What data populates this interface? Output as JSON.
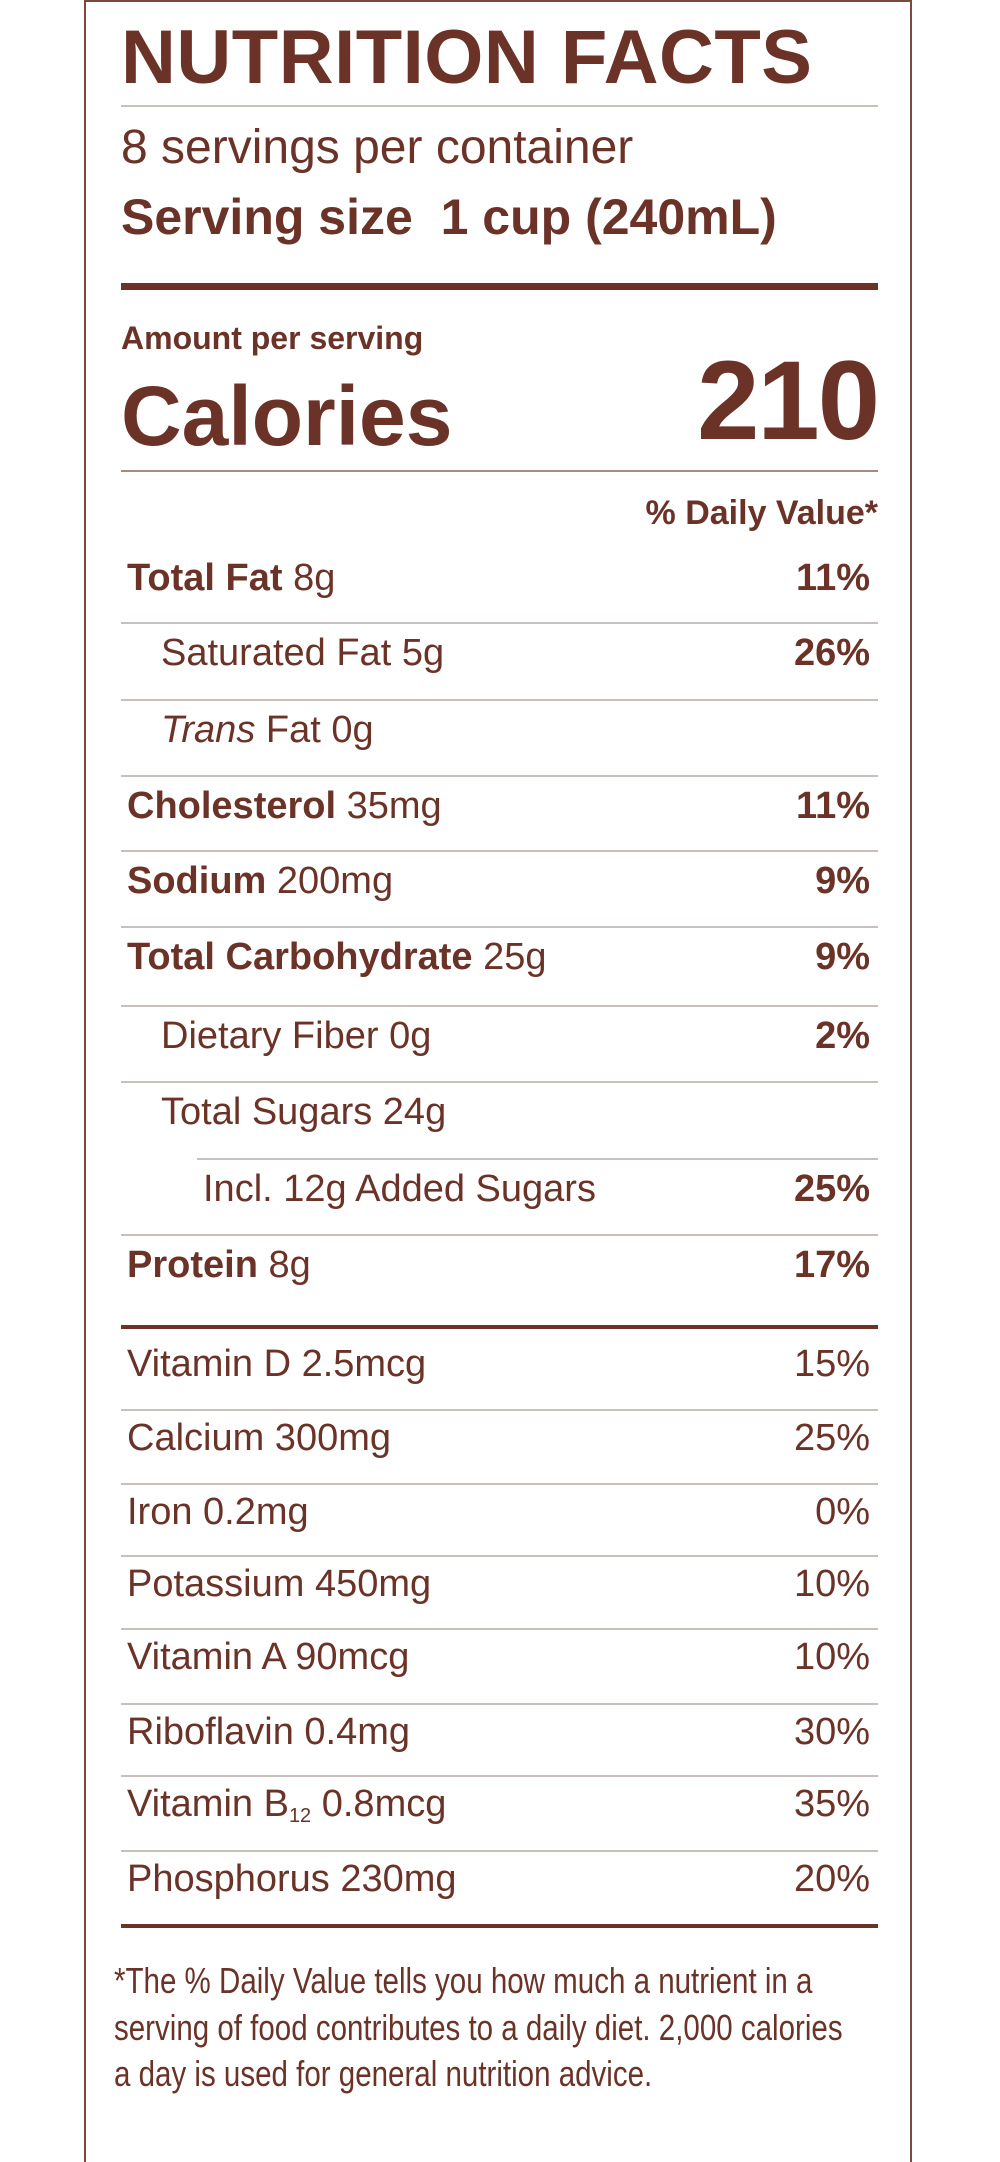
{
  "title": "NUTRITION FACTS",
  "servings_per_container": "8 servings per container",
  "serving_size_label": "Serving size",
  "serving_size_value": "1 cup (240mL)",
  "amount_per_serving": "Amount per serving",
  "calories_label": "Calories",
  "calories_value": "210",
  "daily_value_header": "% Daily Value*",
  "nutrients": [
    {
      "name": "Total Fat",
      "amount": "8g",
      "dv": "11%"
    },
    {
      "name": "Saturated Fat",
      "amount": "5g",
      "dv": "26%"
    },
    {
      "name_italic": "Trans",
      "name": "Fat",
      "amount": "0g",
      "dv": ""
    },
    {
      "name": "Cholesterol",
      "amount": "35mg",
      "dv": "11%"
    },
    {
      "name": "Sodium",
      "amount": "200mg",
      "dv": "9%"
    },
    {
      "name": "Total Carbohydrate",
      "amount": "25g",
      "dv": "9%"
    },
    {
      "name": "Dietary Fiber",
      "amount": "0g",
      "dv": "2%"
    },
    {
      "name": "Total Sugars",
      "amount": "24g",
      "dv": ""
    },
    {
      "name": "Incl. 12g Added Sugars",
      "amount": "",
      "dv": "25%"
    },
    {
      "name": "Protein",
      "amount": "8g",
      "dv": "17%"
    }
  ],
  "vitamins": [
    {
      "name": "Vitamin D 2.5mcg",
      "dv": "15%"
    },
    {
      "name": "Calcium 300mg",
      "dv": "25%"
    },
    {
      "name": "Iron 0.2mg",
      "dv": "0%"
    },
    {
      "name": "Potassium 450mg",
      "dv": "10%"
    },
    {
      "name": "Vitamin A 90mcg",
      "dv": "10%"
    },
    {
      "name": "Riboflavin 0.4mg",
      "dv": "30%"
    },
    {
      "name": "Vitamin B",
      "sub": "12",
      "rest": " 0.8mcg",
      "dv": "35%"
    },
    {
      "name": "Phosphorus 230mg",
      "dv": "20%"
    }
  ],
  "footnote": [
    "*The % Daily Value tells you how much a nutrient in a",
    "serving of food contributes to a daily diet. 2,000 calories",
    "a day is used for general nutrition advice."
  ],
  "colors": {
    "text": "#6b3328",
    "divider": "#c8c0bc",
    "border": "#7a4a3e"
  }
}
